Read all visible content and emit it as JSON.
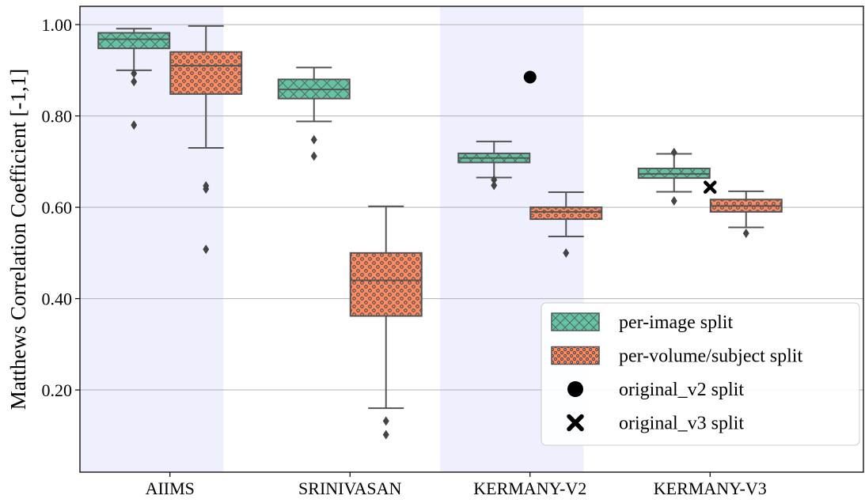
{
  "chart_data": {
    "type": "box",
    "ylabel": "Matthews Correlation Coefficient [-1,1]",
    "xlabel": "",
    "title": "",
    "ylim": [
      0.02,
      1.04
    ],
    "yticks": [
      0.2,
      0.4,
      0.6,
      0.8,
      1.0
    ],
    "ytick_labels": [
      "0.20",
      "0.40",
      "0.60",
      "0.80",
      "1.00"
    ],
    "categories": [
      "AIIMS",
      "SRINIVASAN",
      "KERMANY-V2",
      "KERMANY-V3"
    ],
    "highlighted_categories": [
      "AIIMS",
      "KERMANY-V2"
    ],
    "grid": "horizontal",
    "legend_position": "lower-right",
    "colors": {
      "per_image": "#66c2a5",
      "per_volume": "#fc8d62",
      "box_edge": "#555555",
      "band": "#eef0fd",
      "grid": "#b0b0b0"
    },
    "series": [
      {
        "name": "per-image split",
        "key": "per_image",
        "hatch": "cross",
        "boxes": [
          {
            "whisker_low": 0.9,
            "q1": 0.948,
            "median": 0.968,
            "q3": 0.982,
            "whisker_high": 0.991,
            "outliers": [
              0.893,
              0.875,
              0.78
            ]
          },
          {
            "whisker_low": 0.788,
            "q1": 0.838,
            "median": 0.858,
            "q3": 0.88,
            "whisker_high": 0.906,
            "outliers": [
              0.748,
              0.712
            ]
          },
          {
            "whisker_low": 0.665,
            "q1": 0.698,
            "median": 0.708,
            "q3": 0.718,
            "whisker_high": 0.744,
            "outliers": [
              0.66,
              0.648
            ]
          },
          {
            "whisker_low": 0.634,
            "q1": 0.664,
            "median": 0.673,
            "q3": 0.685,
            "whisker_high": 0.717,
            "outliers": [
              0.72,
              0.614
            ]
          }
        ]
      },
      {
        "name": "per-volume/subject split",
        "key": "per_volume",
        "hatch": "dots",
        "boxes": [
          {
            "whisker_low": 0.73,
            "q1": 0.848,
            "median": 0.91,
            "q3": 0.94,
            "whisker_high": 0.997,
            "outliers": [
              0.647,
              0.64,
              0.508
            ]
          },
          {
            "whisker_low": 0.16,
            "q1": 0.362,
            "median": 0.44,
            "q3": 0.5,
            "whisker_high": 0.602,
            "outliers": [
              0.132,
              0.102
            ]
          },
          {
            "whisker_low": 0.536,
            "q1": 0.574,
            "median": 0.59,
            "q3": 0.6,
            "whisker_high": 0.633,
            "outliers": [
              0.5
            ]
          },
          {
            "whisker_low": 0.556,
            "q1": 0.59,
            "median": 0.603,
            "q3": 0.617,
            "whisker_high": 0.635,
            "outliers": [
              0.543
            ]
          }
        ]
      }
    ],
    "markers": [
      {
        "name": "original_v2 split",
        "symbol": "circle",
        "category": "KERMANY-V2",
        "value": 0.885
      },
      {
        "name": "original_v3 split",
        "symbol": "x",
        "category": "KERMANY-V3",
        "value": 0.644
      }
    ]
  }
}
